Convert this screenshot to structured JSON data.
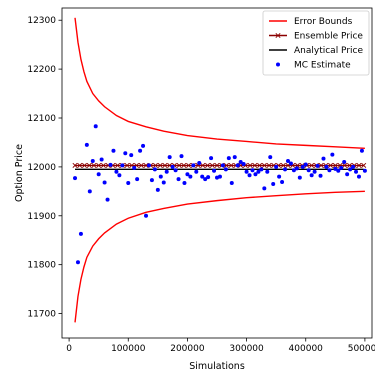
{
  "chart_data": {
    "type": "line",
    "xlabel": "Simulations",
    "ylabel": "Option Price",
    "xlim": [
      -12000,
      512000
    ],
    "ylim": [
      11650,
      12325
    ],
    "xticks": [
      0,
      100000,
      200000,
      300000,
      400000,
      500000
    ],
    "xtick_labels": [
      "0",
      "100000",
      "200000",
      "300000",
      "400000",
      "500000"
    ],
    "yticks": [
      11700,
      11800,
      11900,
      12000,
      12100,
      12200,
      12300
    ],
    "ytick_labels": [
      "11700",
      "11800",
      "11900",
      "12000",
      "12100",
      "12200",
      "12300"
    ],
    "legend_position": "top-right",
    "colors": {
      "error_bounds": "#ff0000",
      "ensemble_price": "#8b0000",
      "analytical_price": "#000000",
      "mc_estimate": "#0000ff"
    },
    "analytical_price": 11995,
    "ensemble_price": 12003,
    "error_bounds": {
      "x": [
        10000,
        15000,
        20000,
        25000,
        30000,
        40000,
        50000,
        60000,
        80000,
        100000,
        130000,
        160000,
        200000,
        250000,
        300000,
        350000,
        400000,
        450000,
        500000
      ],
      "upper": [
        12305,
        12255,
        12220,
        12195,
        12175,
        12150,
        12135,
        12123,
        12105,
        12093,
        12082,
        12073,
        12064,
        12057,
        12052,
        12047,
        12044,
        12041,
        12038
      ],
      "lower": [
        11682,
        11735,
        11770,
        11795,
        11815,
        11838,
        11853,
        11865,
        11883,
        11895,
        11907,
        11915,
        11924,
        11931,
        11937,
        11941,
        11945,
        11948,
        11950
      ]
    },
    "ensemble_x": [
      10000,
      18000,
      26000,
      34000,
      42000,
      50000,
      58000,
      66000,
      74000,
      82000,
      90000,
      98000,
      106000,
      114000,
      122000,
      130000,
      138000,
      146000,
      154000,
      162000,
      170000,
      178000,
      186000,
      194000,
      202000,
      210000,
      218000,
      226000,
      234000,
      242000,
      250000,
      258000,
      266000,
      274000,
      282000,
      290000,
      298000,
      306000,
      314000,
      322000,
      330000,
      338000,
      346000,
      354000,
      362000,
      370000,
      378000,
      386000,
      394000,
      402000,
      410000,
      418000,
      426000,
      434000,
      442000,
      450000,
      458000,
      466000,
      474000,
      482000,
      490000,
      498000
    ],
    "mc_estimate": {
      "x": [
        10000,
        15000,
        20000,
        30000,
        35000,
        40000,
        45000,
        50000,
        55000,
        60000,
        65000,
        70000,
        75000,
        80000,
        85000,
        90000,
        95000,
        100000,
        105000,
        110000,
        115000,
        120000,
        125000,
        130000,
        135000,
        140000,
        145000,
        150000,
        155000,
        160000,
        165000,
        170000,
        175000,
        180000,
        185000,
        190000,
        195000,
        200000,
        205000,
        210000,
        215000,
        220000,
        225000,
        230000,
        235000,
        240000,
        245000,
        250000,
        255000,
        260000,
        265000,
        270000,
        275000,
        280000,
        285000,
        290000,
        295000,
        300000,
        305000,
        310000,
        315000,
        320000,
        325000,
        330000,
        335000,
        340000,
        345000,
        350000,
        355000,
        360000,
        365000,
        370000,
        375000,
        380000,
        385000,
        390000,
        395000,
        400000,
        405000,
        410000,
        415000,
        420000,
        425000,
        430000,
        435000,
        440000,
        445000,
        450000,
        455000,
        460000,
        465000,
        470000,
        475000,
        480000,
        485000,
        490000,
        495000,
        500000
      ],
      "y": [
        11977,
        11805,
        11863,
        12045,
        11950,
        12012,
        12083,
        11985,
        12015,
        11968,
        11933,
        12004,
        12033,
        11990,
        11983,
        12003,
        12028,
        11967,
        12024,
        11998,
        11975,
        12033,
        12043,
        11900,
        12003,
        11973,
        11995,
        11953,
        11980,
        11968,
        11990,
        12020,
        12000,
        11993,
        11975,
        12022,
        11967,
        11985,
        11980,
        12003,
        11990,
        12008,
        11980,
        11975,
        11979,
        12018,
        11992,
        11978,
        11980,
        12003,
        11995,
        12018,
        11967,
        12020,
        12003,
        12010,
        12006,
        11990,
        11983,
        11993,
        11985,
        11990,
        11995,
        11956,
        11990,
        12020,
        11965,
        12000,
        11980,
        11969,
        11995,
        12012,
        12007,
        11993,
        11997,
        11978,
        12000,
        12005,
        11993,
        11983,
        11990,
        12002,
        11982,
        12017,
        12000,
        11993,
        12025,
        11996,
        11992,
        11998,
        12010,
        11985,
        11995,
        12000,
        11990,
        11980,
        12033,
        11992
      ]
    },
    "legend": [
      {
        "key": "error_bounds",
        "label": "Error Bounds"
      },
      {
        "key": "ensemble_price",
        "label": "Ensemble Price"
      },
      {
        "key": "analytical_price",
        "label": "Analytical Price"
      },
      {
        "key": "mc_estimate",
        "label": "MC Estimate"
      }
    ]
  }
}
